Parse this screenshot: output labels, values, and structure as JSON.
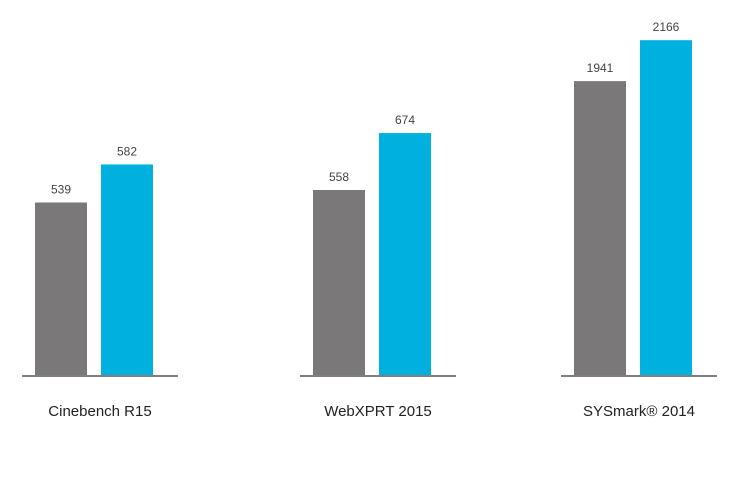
{
  "chart_data": [
    {
      "type": "bar",
      "x_label": "Cinebench R15",
      "values": [
        539,
        582
      ],
      "colors": [
        "#7a7878",
        "#00b0de"
      ],
      "ylim": [
        344,
        734
      ]
    },
    {
      "type": "bar",
      "x_label": "WebXPRT 2015",
      "values": [
        558,
        674
      ],
      "colors": [
        "#7a7878",
        "#00b0de"
      ],
      "ylim": [
        181,
        884
      ]
    },
    {
      "type": "bar",
      "x_label": "SYSmark® 2014",
      "values": [
        1941,
        2166
      ],
      "colors": [
        "#7a7878",
        "#00b0de"
      ],
      "ylim": [
        326,
        2222
      ]
    }
  ]
}
